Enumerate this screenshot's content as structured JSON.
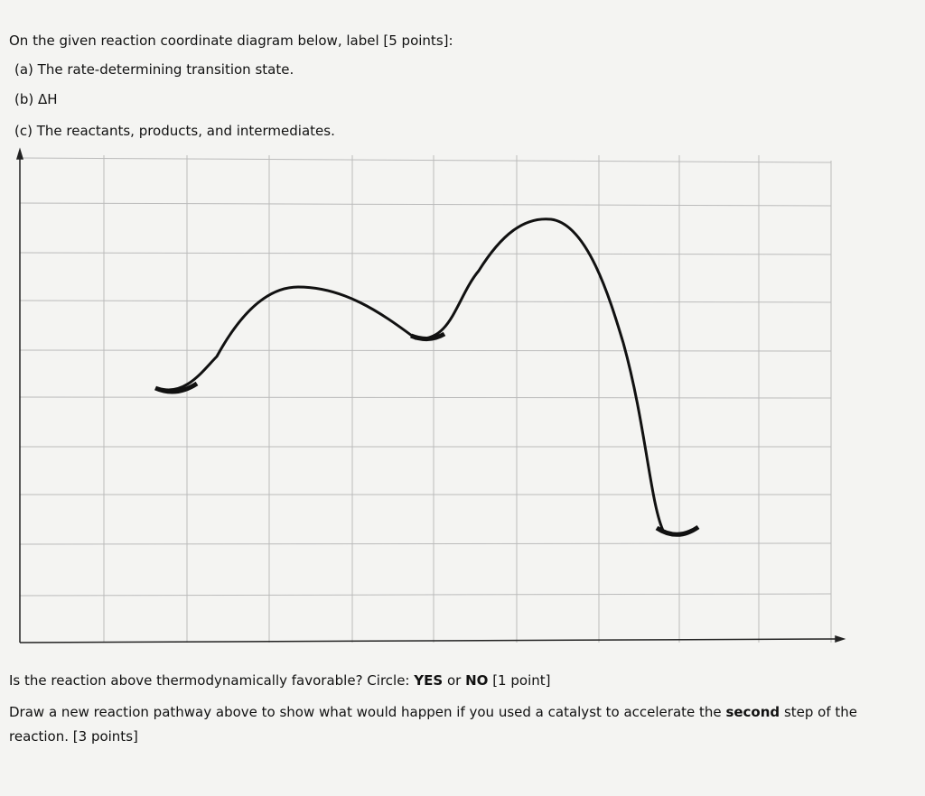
{
  "header": {
    "instruction": "On the given reaction coordinate diagram below, label [5 points]:",
    "items": [
      "(a) The rate-determining transition state.",
      "(b) ΔH",
      "(c) The reactants, products, and intermediates."
    ]
  },
  "questions": [
    {
      "before": "Is the reaction above thermodynamically favorable? Circle:",
      "yes": "YES",
      "or": "or",
      "no": "NO",
      "after": "[1 point]"
    },
    {
      "before": "Draw a new reaction pathway above to show what would happen if you used a catalyst to accelerate the",
      "bold": "second",
      "after": "step of the reaction. [3 points]"
    }
  ]
}
